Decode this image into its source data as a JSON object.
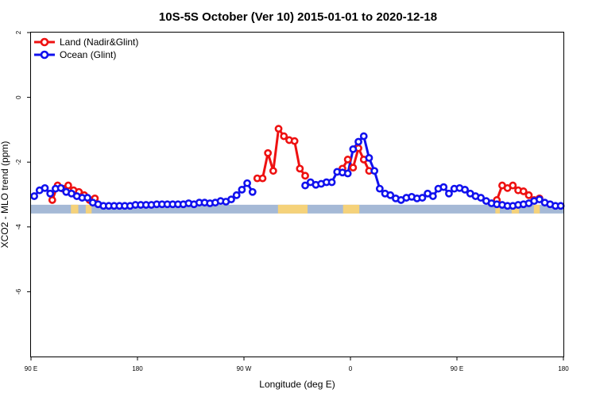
{
  "chart_data": {
    "type": "line",
    "title": "10S-5S October (Ver 10)   2015-01-01 to 2020-12-18",
    "xlabel": "Longitude (deg E)",
    "ylabel": "XCO2 - MLO trend (ppm)",
    "xlim": [
      90,
      450
    ],
    "ylim": [
      -8,
      2
    ],
    "x_ticks": [
      {
        "value": 90,
        "label": "90 E"
      },
      {
        "value": 162,
        "label": "180"
      },
      {
        "value": 234,
        "label": "90 W"
      },
      {
        "value": 306,
        "label": "0"
      },
      {
        "value": 378,
        "label": "90 E"
      },
      {
        "value": 450,
        "label": "180"
      }
    ],
    "y_ticks": [
      {
        "value": 2,
        "label": "2"
      },
      {
        "value": 0,
        "label": "0"
      },
      {
        "value": -2,
        "label": "-2"
      },
      {
        "value": -4,
        "label": "-4"
      },
      {
        "value": -6,
        "label": "-6"
      }
    ],
    "legend": {
      "position": "top-left"
    },
    "colors": {
      "land": "#ee1111",
      "ocean": "#1111ee",
      "land_band": "#f5d27a",
      "ocean_band": "#a5b9d6"
    },
    "series": [
      {
        "name": "Land (Nadir&Glint)",
        "color": "#ee1111",
        "segments": [
          [
            [
              104.4,
              -3.17
            ],
            [
              108.0,
              -2.72
            ],
            [
              111.6,
              -2.82
            ],
            [
              115.2,
              -2.72
            ],
            [
              118.8,
              -2.87
            ],
            [
              122.4,
              -2.92
            ],
            [
              126.0,
              -3.02
            ],
            [
              129.6,
              -3.17
            ],
            [
              133.2,
              -3.12
            ]
          ],
          [
            [
              243.0,
              -2.5
            ],
            [
              246.6,
              -2.5
            ],
            [
              250.2,
              -1.72
            ],
            [
              253.8,
              -2.27
            ],
            [
              257.4,
              -0.97
            ],
            [
              261.0,
              -1.2
            ],
            [
              264.6,
              -1.32
            ],
            [
              268.2,
              -1.35
            ],
            [
              271.8,
              -2.2
            ],
            [
              275.4,
              -2.42
            ]
          ],
          [
            [
              300.6,
              -2.2
            ],
            [
              304.2,
              -1.92
            ],
            [
              307.8,
              -2.17
            ],
            [
              311.4,
              -1.57
            ],
            [
              315.0,
              -1.92
            ],
            [
              318.6,
              -2.27
            ]
          ],
          [
            [
              405.0,
              -3.17
            ],
            [
              408.6,
              -2.72
            ],
            [
              412.2,
              -2.8
            ],
            [
              415.8,
              -2.72
            ],
            [
              419.4,
              -2.87
            ],
            [
              423.0,
              -2.9
            ],
            [
              426.6,
              -3.02
            ],
            [
              430.2,
              -3.17
            ],
            [
              433.8,
              -3.12
            ]
          ]
        ]
      },
      {
        "name": "Ocean (Glint)",
        "color": "#1111ee",
        "segments": [
          [
            [
              92.2,
              -3.05
            ],
            [
              95.8,
              -2.87
            ],
            [
              99.4,
              -2.8
            ],
            [
              103.0,
              -2.97
            ],
            [
              106.6,
              -2.82
            ],
            [
              110.2,
              -2.8
            ],
            [
              113.8,
              -2.92
            ],
            [
              117.4,
              -2.97
            ],
            [
              121.0,
              -3.05
            ],
            [
              124.6,
              -3.1
            ],
            [
              128.2,
              -3.1
            ],
            [
              131.8,
              -3.25
            ],
            [
              135.4,
              -3.3
            ],
            [
              139.0,
              -3.35
            ],
            [
              142.6,
              -3.35
            ],
            [
              146.2,
              -3.35
            ],
            [
              149.8,
              -3.35
            ],
            [
              153.4,
              -3.35
            ],
            [
              157.0,
              -3.35
            ],
            [
              160.6,
              -3.32
            ],
            [
              164.2,
              -3.32
            ],
            [
              167.8,
              -3.32
            ],
            [
              171.4,
              -3.32
            ],
            [
              175.0,
              -3.3
            ],
            [
              178.6,
              -3.3
            ],
            [
              182.2,
              -3.3
            ],
            [
              185.8,
              -3.3
            ],
            [
              189.4,
              -3.3
            ],
            [
              193.0,
              -3.3
            ],
            [
              196.6,
              -3.27
            ],
            [
              200.2,
              -3.3
            ],
            [
              203.8,
              -3.25
            ],
            [
              207.4,
              -3.25
            ],
            [
              211.0,
              -3.27
            ],
            [
              214.6,
              -3.25
            ],
            [
              218.2,
              -3.2
            ],
            [
              221.8,
              -3.22
            ],
            [
              225.4,
              -3.15
            ],
            [
              229.0,
              -3.02
            ],
            [
              232.6,
              -2.85
            ],
            [
              236.2,
              -2.65
            ],
            [
              239.8,
              -2.92
            ]
          ],
          [
            [
              275.4,
              -2.72
            ],
            [
              279.0,
              -2.62
            ],
            [
              282.6,
              -2.7
            ],
            [
              286.2,
              -2.67
            ],
            [
              289.8,
              -2.62
            ],
            [
              293.4,
              -2.62
            ],
            [
              297.0,
              -2.3
            ],
            [
              300.6,
              -2.32
            ],
            [
              304.2,
              -2.35
            ],
            [
              307.8,
              -1.6
            ],
            [
              311.4,
              -1.37
            ],
            [
              315.0,
              -1.2
            ],
            [
              318.6,
              -1.87
            ],
            [
              322.2,
              -2.27
            ],
            [
              325.8,
              -2.82
            ],
            [
              329.4,
              -2.97
            ],
            [
              333.0,
              -3.02
            ],
            [
              336.6,
              -3.12
            ],
            [
              340.2,
              -3.17
            ],
            [
              343.8,
              -3.1
            ],
            [
              347.4,
              -3.07
            ],
            [
              351.0,
              -3.12
            ],
            [
              354.6,
              -3.1
            ],
            [
              358.2,
              -2.97
            ],
            [
              361.8,
              -3.05
            ],
            [
              365.4,
              -2.82
            ],
            [
              369.0,
              -2.77
            ],
            [
              372.6,
              -2.97
            ],
            [
              376.2,
              -2.82
            ],
            [
              379.8,
              -2.8
            ],
            [
              383.4,
              -2.85
            ],
            [
              387.0,
              -2.97
            ],
            [
              390.6,
              -3.05
            ],
            [
              394.2,
              -3.1
            ],
            [
              397.8,
              -3.2
            ],
            [
              401.4,
              -3.27
            ],
            [
              405.0,
              -3.3
            ],
            [
              408.6,
              -3.32
            ],
            [
              412.2,
              -3.35
            ],
            [
              415.8,
              -3.35
            ],
            [
              419.4,
              -3.32
            ],
            [
              423.0,
              -3.3
            ],
            [
              426.6,
              -3.27
            ],
            [
              430.2,
              -3.2
            ],
            [
              433.8,
              -3.15
            ],
            [
              437.4,
              -3.25
            ],
            [
              441.0,
              -3.3
            ],
            [
              444.6,
              -3.35
            ],
            [
              448.2,
              -3.35
            ]
          ]
        ]
      }
    ],
    "surface_band": {
      "y": -3.45,
      "land_ranges": [
        [
          117,
          122
        ],
        [
          127,
          131
        ],
        [
          257,
          277
        ],
        [
          301,
          312
        ],
        [
          404,
          407
        ],
        [
          415,
          420
        ],
        [
          430,
          434
        ]
      ]
    }
  }
}
